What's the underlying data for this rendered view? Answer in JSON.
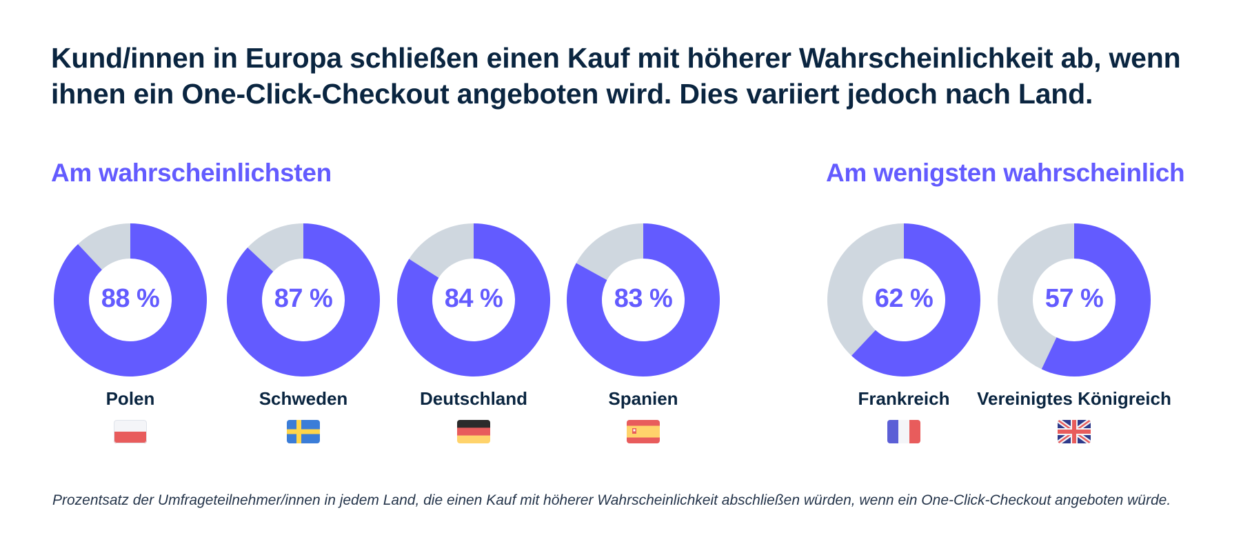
{
  "headline": "Kund/innen in Europa schließen einen Kauf mit höherer Wahrscheinlichkeit ab, wenn ihnen ein One-Click-Checkout angeboten wird. Dies variiert jedoch nach Land.",
  "groups": {
    "most": "Am wahrscheinlichsten",
    "least": "Am wenigsten wahrscheinlich"
  },
  "colors": {
    "accent": "#635bff",
    "remainder": "#cfd7df",
    "text": "#0a2540"
  },
  "chart_data": {
    "type": "pie",
    "title": "Kund/innen in Europa schließen einen Kauf mit höherer Wahrscheinlichkeit ab, wenn ihnen ein One-Click-Checkout angeboten wird. Dies variiert jedoch nach Land.",
    "unit": "%",
    "series": [
      {
        "country": "Polen",
        "value": 88,
        "label": "88 %",
        "group": "most",
        "flag": "poland-flag-icon"
      },
      {
        "country": "Schweden",
        "value": 87,
        "label": "87 %",
        "group": "most",
        "flag": "sweden-flag-icon"
      },
      {
        "country": "Deutschland",
        "value": 84,
        "label": "84 %",
        "group": "most",
        "flag": "germany-flag-icon"
      },
      {
        "country": "Spanien",
        "value": 83,
        "label": "83 %",
        "group": "most",
        "flag": "spain-flag-icon"
      },
      {
        "country": "Frankreich",
        "value": 62,
        "label": "62 %",
        "group": "least",
        "flag": "france-flag-icon"
      },
      {
        "country": "Vereinigtes Königreich",
        "value": 57,
        "label": "57 %",
        "group": "least",
        "flag": "uk-flag-icon"
      }
    ]
  },
  "footnote": "Prozentsatz der Umfrageteilnehmer/innen in jedem Land, die einen Kauf mit höherer Wahrscheinlichkeit abschließen würden, wenn ein One-Click-Checkout angeboten würde."
}
